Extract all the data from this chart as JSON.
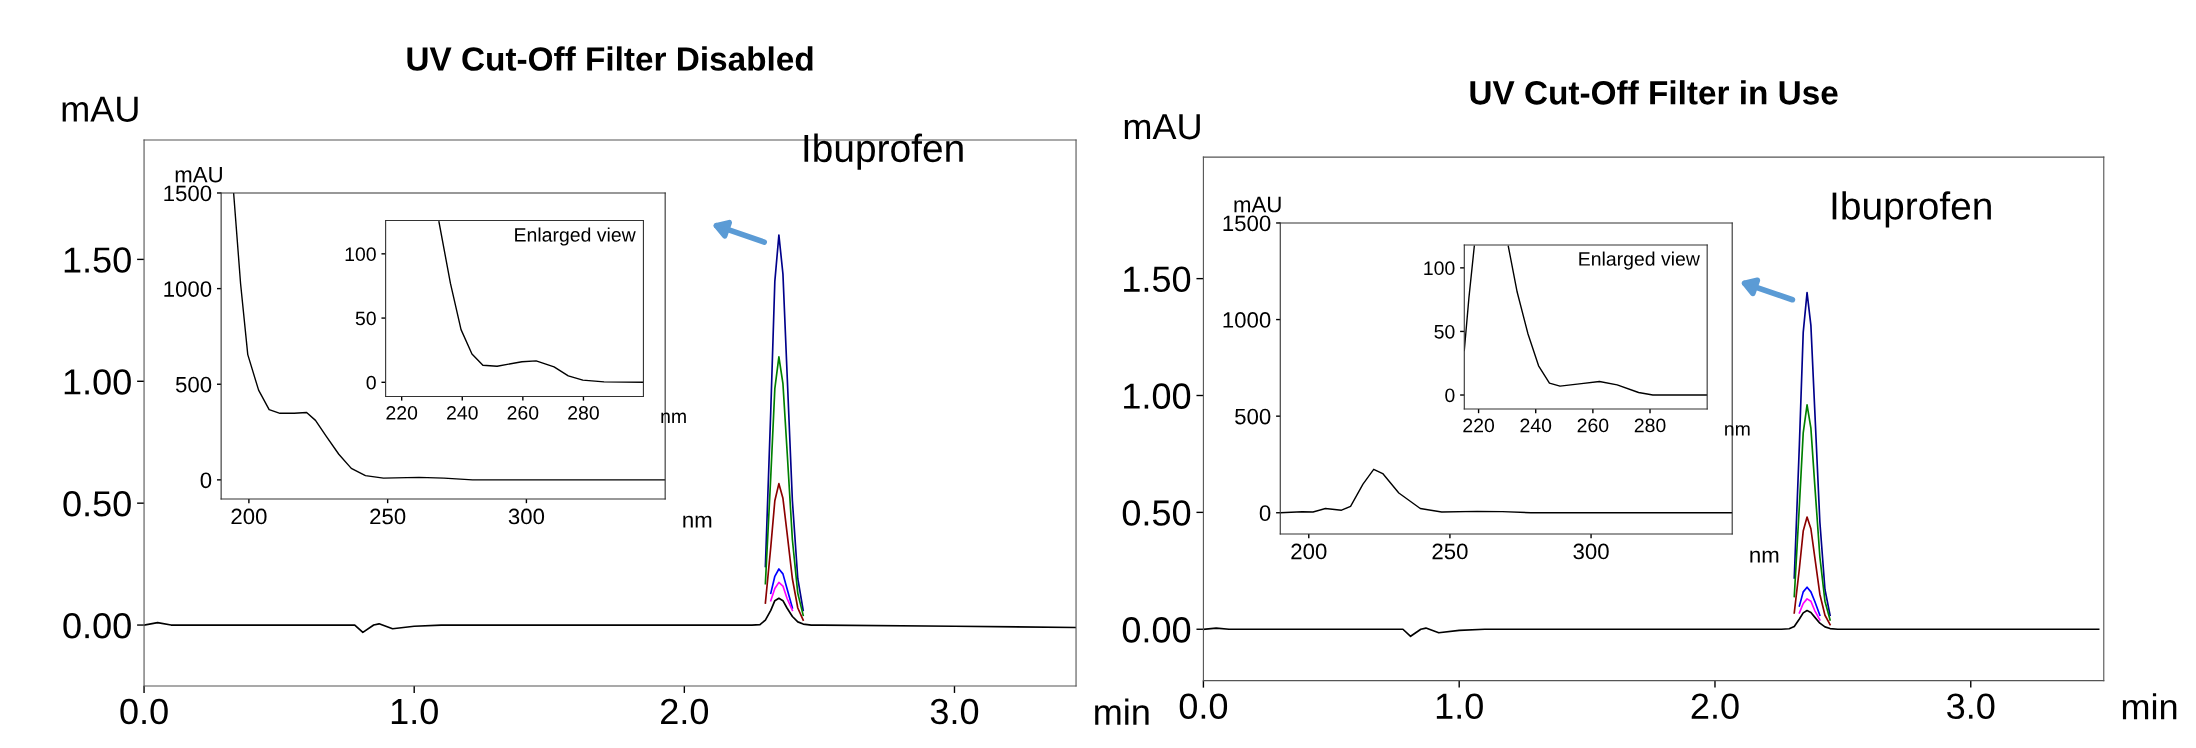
{
  "chart_data": [
    {
      "type": "line",
      "title": "UV Cut-Off Filter Disabled",
      "xlabel": "min",
      "ylabel": "mAU",
      "x": [
        0,
        0.05,
        0.1,
        0.5,
        0.78,
        0.81,
        0.85,
        0.87,
        0.92,
        1.0,
        1.1,
        1.5,
        1.65,
        2.2,
        2.25,
        2.28,
        2.3,
        2.32,
        2.335,
        2.35,
        2.365,
        2.38,
        2.4,
        2.42,
        2.44,
        2.47,
        2.51,
        3.0,
        3.45
      ],
      "series": [
        {
          "color": "#00008b",
          "values": [
            null,
            null,
            null,
            null,
            null,
            null,
            null,
            null,
            null,
            null,
            null,
            null,
            null,
            null,
            null,
            null,
            0.24,
            0.88,
            1.41,
            1.6,
            1.44,
            1.04,
            0.51,
            0.19,
            0.06,
            null,
            null,
            null,
            null
          ]
        },
        {
          "color": "#008000",
          "values": [
            null,
            null,
            null,
            null,
            null,
            null,
            null,
            null,
            null,
            null,
            null,
            null,
            null,
            null,
            null,
            null,
            0.17,
            0.61,
            0.97,
            1.1,
            0.99,
            0.72,
            0.35,
            0.13,
            0.04,
            null,
            null,
            null,
            null
          ]
        },
        {
          "color": "#8b0000",
          "values": [
            null,
            null,
            null,
            null,
            null,
            null,
            null,
            null,
            null,
            null,
            null,
            null,
            null,
            null,
            null,
            null,
            0.09,
            0.32,
            0.51,
            0.58,
            0.52,
            0.38,
            0.19,
            0.07,
            0.02,
            null,
            null,
            null,
            null
          ]
        },
        {
          "color": "#0000ff",
          "values": [
            null,
            null,
            null,
            null,
            null,
            null,
            null,
            null,
            null,
            null,
            null,
            null,
            null,
            null,
            null,
            null,
            null,
            0.13,
            0.2,
            0.23,
            0.21,
            0.15,
            0.07,
            null,
            null,
            null,
            null,
            null,
            null
          ]
        },
        {
          "color": "#ff00ff",
          "values": [
            null,
            null,
            null,
            null,
            null,
            null,
            null,
            null,
            null,
            null,
            null,
            null,
            null,
            null,
            null,
            null,
            null,
            0.1,
            0.15,
            0.175,
            0.16,
            0.11,
            0.06,
            null,
            null,
            null,
            null,
            null,
            null
          ]
        },
        {
          "color": "#000000",
          "values": [
            0,
            0.01,
            0,
            0,
            0,
            -0.03,
            0,
            0.005,
            -0.015,
            -0.005,
            0,
            0,
            0,
            0,
            0,
            0.002,
            0.02,
            0.06,
            0.1,
            0.11,
            0.1,
            0.07,
            0.035,
            0.013,
            0.004,
            0,
            0,
            -0.005,
            -0.01
          ]
        }
      ],
      "xlim": [
        0,
        3.45
      ],
      "ylim": [
        -0.25,
        1.99
      ],
      "xticks": [
        {
          "value": 0,
          "label": "0.0"
        },
        {
          "value": 1,
          "label": "1.0"
        },
        {
          "value": 2,
          "label": "2.0"
        },
        {
          "value": 3,
          "label": "3.0"
        }
      ],
      "yticks": [
        {
          "value": 0,
          "label": "0.00"
        },
        {
          "value": 0.5,
          "label": "0.50"
        },
        {
          "value": 1,
          "label": "1.00"
        },
        {
          "value": 1.5,
          "label": "1.50"
        }
      ],
      "annotations": [
        {
          "text": "Ibuprofen",
          "x": 2.35,
          "y": 1.6
        }
      ]
    },
    {
      "type": "line",
      "xlabel": "nm",
      "ylabel": "mAU",
      "x": [
        194.5,
        197.0,
        199.6,
        203.5,
        207.3,
        211.2,
        216.3,
        220.8,
        224.0,
        227.9,
        232.4,
        236.9,
        242,
        248.5,
        261.3,
        270.3,
        280.6,
        350
      ],
      "series": [
        {
          "color": "#000000",
          "values": [
            1500,
            1027,
            655,
            469,
            367,
            348,
            348,
            352,
            311,
            227,
            134,
            60,
            22,
            9,
            13,
            9,
            0,
            0
          ]
        }
      ],
      "xlim": [
        190,
        350
      ],
      "ylim": [
        -100,
        1500
      ],
      "xticks": [
        200,
        250,
        300
      ],
      "yticks": [
        0,
        500,
        1000,
        1500
      ]
    },
    {
      "type": "line",
      "title": "Enlarged view",
      "xlabel": "nm",
      "x": [
        232.3,
        236.1,
        239.6,
        243.2,
        246.8,
        251.5,
        259.7,
        264.4,
        270.3,
        275,
        279.8,
        286.8,
        299.8
      ],
      "series": [
        {
          "color": "#000000",
          "values": [
            125,
            77,
            41,
            22,
            13.3,
            12.5,
            16,
            16.7,
            12,
            5,
            1.7,
            0.3,
            0
          ]
        }
      ],
      "xlim": [
        214.7,
        299.8
      ],
      "ylim": [
        -11,
        126
      ],
      "xticks": [
        220,
        240,
        260,
        280
      ],
      "yticks": [
        0,
        50,
        100
      ]
    },
    {
      "type": "line",
      "title": "UV Cut-Off Filter in Use",
      "xlabel": "min",
      "ylabel": "mAU",
      "x": [
        0,
        0.05,
        0.1,
        0.5,
        0.78,
        0.81,
        0.85,
        0.87,
        0.92,
        1.0,
        1.1,
        1.5,
        1.65,
        2.2,
        2.26,
        2.29,
        2.31,
        2.33,
        2.345,
        2.36,
        2.375,
        2.39,
        2.41,
        2.43,
        2.45,
        2.48,
        2.52,
        3.0,
        3.5
      ],
      "series": [
        {
          "color": "#00008b",
          "values": [
            null,
            null,
            null,
            null,
            null,
            null,
            null,
            null,
            null,
            null,
            null,
            null,
            null,
            null,
            null,
            null,
            0.22,
            0.79,
            1.27,
            1.44,
            1.3,
            0.94,
            0.46,
            0.17,
            0.06,
            null,
            null,
            null,
            null
          ]
        },
        {
          "color": "#008000",
          "values": [
            null,
            null,
            null,
            null,
            null,
            null,
            null,
            null,
            null,
            null,
            null,
            null,
            null,
            null,
            null,
            null,
            0.14,
            0.53,
            0.84,
            0.96,
            0.86,
            0.62,
            0.31,
            0.12,
            0.04,
            null,
            null,
            null,
            null
          ]
        },
        {
          "color": "#8b0000",
          "values": [
            null,
            null,
            null,
            null,
            null,
            null,
            null,
            null,
            null,
            null,
            null,
            null,
            null,
            null,
            null,
            null,
            0.07,
            0.26,
            0.42,
            0.48,
            0.43,
            0.31,
            0.15,
            0.06,
            0.02,
            null,
            null,
            null,
            null
          ]
        },
        {
          "color": "#0000ff",
          "values": [
            null,
            null,
            null,
            null,
            null,
            null,
            null,
            null,
            null,
            null,
            null,
            null,
            null,
            null,
            null,
            null,
            null,
            0.1,
            0.16,
            0.18,
            0.16,
            0.12,
            0.06,
            null,
            null,
            null,
            null,
            null,
            null
          ]
        },
        {
          "color": "#ff00ff",
          "values": [
            null,
            null,
            null,
            null,
            null,
            null,
            null,
            null,
            null,
            null,
            null,
            null,
            null,
            null,
            null,
            null,
            null,
            0.07,
            0.11,
            0.13,
            0.12,
            0.08,
            0.04,
            null,
            null,
            null,
            null,
            null,
            null
          ]
        },
        {
          "color": "#000000",
          "values": [
            0,
            0.005,
            0,
            0,
            0,
            -0.03,
            0,
            0.005,
            -0.015,
            -0.005,
            0,
            0,
            0,
            0,
            0,
            0.002,
            0.012,
            0.044,
            0.07,
            0.08,
            0.072,
            0.052,
            0.026,
            0.01,
            0.003,
            0,
            0,
            0,
            0
          ]
        }
      ],
      "xlim": [
        0,
        3.52
      ],
      "ylim": [
        -0.22,
        2.02
      ],
      "xticks": [
        {
          "value": 0,
          "label": "0.0"
        },
        {
          "value": 1,
          "label": "1.0"
        },
        {
          "value": 2,
          "label": "2.0"
        },
        {
          "value": 3,
          "label": "3.0"
        }
      ],
      "yticks": [
        {
          "value": 0,
          "label": "0.00"
        },
        {
          "value": 0.5,
          "label": "0.50"
        },
        {
          "value": 1,
          "label": "1.00"
        },
        {
          "value": 1.5,
          "label": "1.50"
        }
      ],
      "annotations": [
        {
          "text": "Ibuprofen",
          "x": 2.36,
          "y": 1.44
        }
      ]
    },
    {
      "type": "line",
      "xlabel": "nm",
      "ylabel": "mAU",
      "x": [
        189.9,
        197.7,
        201.5,
        205.9,
        211.6,
        214.8,
        219.2,
        223,
        226.2,
        231.9,
        239.5,
        247.1,
        259.7,
        268.6,
        278.7,
        350
      ],
      "series": [
        {
          "color": "#000000",
          "values": [
            0,
            5,
            4,
            22,
            13,
            33,
            148,
            225,
            203,
            102,
            22,
            4,
            7,
            6,
            0,
            0
          ]
        }
      ],
      "xlim": [
        189.9,
        350
      ],
      "ylim": [
        -110,
        1500
      ],
      "xticks": [
        200,
        250,
        300
      ],
      "yticks": [
        0,
        500,
        1000,
        1500
      ]
    },
    {
      "type": "line",
      "title": "Enlarged view",
      "xlabel": "nm",
      "x": [
        215,
        216.6,
        218.5,
        224,
        230.4,
        233.5,
        237.3,
        241,
        244.8,
        248.5,
        256,
        262.3,
        268.5,
        276,
        281,
        300
      ],
      "series": [
        {
          "color": "#000000",
          "values": [
            35,
            76,
            117,
            null,
            117,
            81,
            48,
            23,
            9.4,
            7,
            9,
            10.6,
            8,
            2,
            0,
            0
          ]
        }
      ],
      "xlim": [
        215,
        300
      ],
      "ylim": [
        -11,
        118
      ],
      "xticks": [
        220,
        240,
        260,
        280
      ],
      "yticks": [
        0,
        50,
        100
      ]
    }
  ]
}
